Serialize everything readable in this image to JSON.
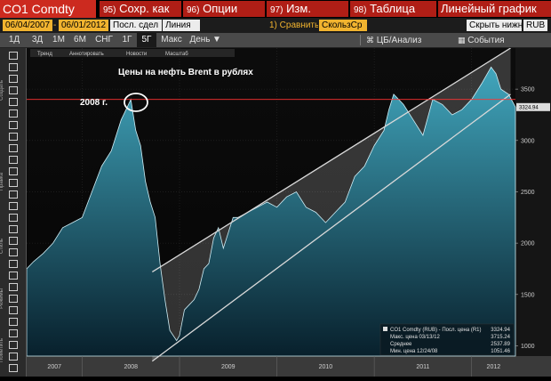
{
  "topbar": {
    "ticker": "CO1 Comdty",
    "menus": [
      {
        "num": "95)",
        "label": "Сохр. как"
      },
      {
        "num": "96)",
        "label": "Опции"
      },
      {
        "num": "97)",
        "label": "Изм."
      },
      {
        "num": "98)",
        "label": "Таблица"
      }
    ],
    "chart_type": "Линейный график"
  },
  "params": {
    "date_from": "06/04/2007",
    "date_to": "06/01/2012",
    "field": "Посл. сдел",
    "style": "Линия",
    "compare": "1) Сравнить",
    "indicator": "СкользСр",
    "hide": "Скрыть нижний",
    "currency": "RUB"
  },
  "periods": {
    "items": [
      "1Д",
      "3Д",
      "1М",
      "6М",
      "СНГ",
      "1Г",
      "5Г",
      "Макс"
    ],
    "active": "5Г",
    "freq": "День",
    "dropdown": "▼",
    "analysis": "ЦБ/Анализ",
    "events": "События"
  },
  "toolbar_labels": {
    "create": "Создать",
    "edit": "Правка",
    "style": "Стиль",
    "modes": "Режимы",
    "tools": "Пометить"
  },
  "chart_tools": [
    "Тренд",
    "Аннотировать",
    "Новости",
    "Масштаб"
  ],
  "annotation": {
    "title": "Цены на нефть Brent в рублях",
    "year_label": "2008 г."
  },
  "legend": {
    "main": "CO1 Comdty (RUB) - Посл. цена (R1)",
    "main_value": "3324.94",
    "max": "Макс. цена 03/13/12",
    "max_value": "3715.24",
    "avg": "Среднее",
    "avg_value": "2537.89",
    "min": "Мин. цена 12/24/08",
    "min_value": "1051.46"
  },
  "last_price_label": "3324.94",
  "colors": {
    "accent_red": "#cc2a1f",
    "amber": "#f1b32f",
    "price_fill_top": "#41a6bd",
    "price_fill_bottom": "#08202c",
    "channel": "#d9d9d9",
    "ref_line": "#ff3333"
  },
  "chart_data": {
    "type": "area",
    "title": "Цены на нефть Brent в рублях",
    "x_tick_labels": [
      "2007",
      "2008",
      "2009",
      "2010",
      "2011",
      "2012"
    ],
    "y_ticks": [
      1000,
      1500,
      2000,
      2500,
      3000,
      3500
    ],
    "ylim": [
      900,
      3900
    ],
    "xlim": [
      2007.43,
      2012.45
    ],
    "grid": true,
    "series": [
      {
        "name": "CO1 Comdty (RUB) - Посл. цена (R1)",
        "x": [
          2007.43,
          2007.5,
          2007.6,
          2007.7,
          2007.8,
          2007.9,
          2008.0,
          2008.1,
          2008.2,
          2008.3,
          2008.4,
          2008.45,
          2008.5,
          2008.55,
          2008.6,
          2008.65,
          2008.7,
          2008.75,
          2008.8,
          2008.85,
          2008.9,
          2008.97,
          2009.0,
          2009.05,
          2009.1,
          2009.15,
          2009.2,
          2009.25,
          2009.3,
          2009.35,
          2009.4,
          2009.45,
          2009.5,
          2009.55,
          2009.6,
          2009.7,
          2009.8,
          2009.9,
          2010.0,
          2010.1,
          2010.2,
          2010.3,
          2010.4,
          2010.5,
          2010.6,
          2010.7,
          2010.8,
          2010.9,
          2011.0,
          2011.1,
          2011.15,
          2011.2,
          2011.3,
          2011.4,
          2011.5,
          2011.6,
          2011.7,
          2011.8,
          2011.9,
          2012.0,
          2012.1,
          2012.2,
          2012.25,
          2012.3,
          2012.38,
          2012.45
        ],
        "values": [
          1750,
          1820,
          1900,
          2000,
          2150,
          2200,
          2250,
          2500,
          2750,
          2900,
          3200,
          3300,
          3400,
          3100,
          2950,
          2600,
          2400,
          2250,
          1800,
          1450,
          1150,
          1051,
          1100,
          1350,
          1400,
          1450,
          1550,
          1750,
          1800,
          2050,
          2150,
          1950,
          2100,
          2250,
          2250,
          2300,
          2350,
          2400,
          2350,
          2450,
          2500,
          2350,
          2300,
          2200,
          2300,
          2400,
          2650,
          2750,
          2950,
          3100,
          3300,
          3450,
          3350,
          3200,
          3050,
          3400,
          3350,
          3250,
          3300,
          3400,
          3550,
          3715,
          3650,
          3500,
          3450,
          3325
        ]
      }
    ],
    "reference_line": 3400,
    "channel_upper": {
      "x": [
        2008.72,
        2012.4
      ],
      "y": [
        1720,
        3900
      ]
    },
    "channel_lower": {
      "x": [
        2008.72,
        2012.4
      ],
      "y": [
        850,
        3450
      ]
    }
  }
}
